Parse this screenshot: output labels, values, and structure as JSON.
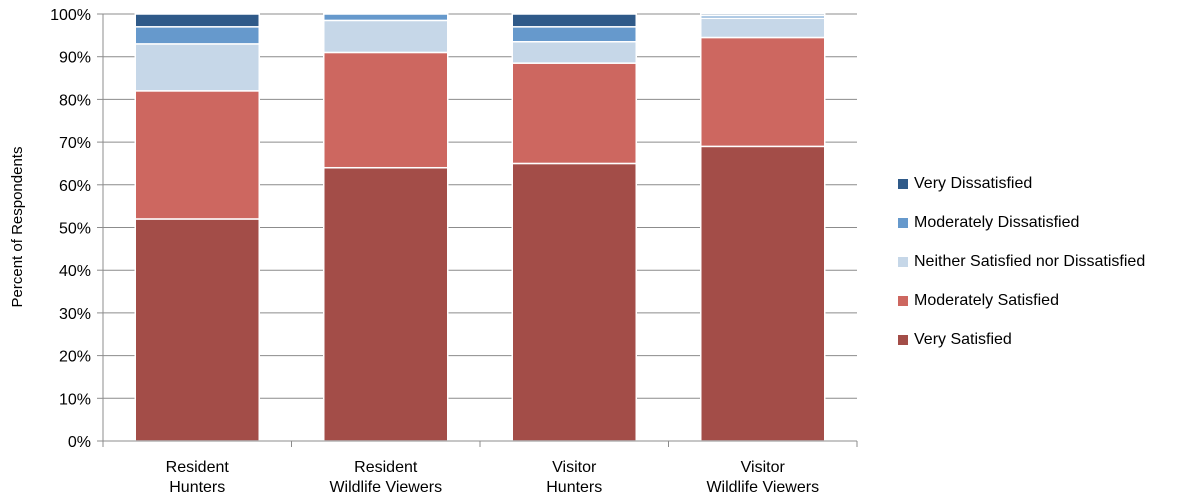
{
  "chart_data": {
    "type": "bar",
    "stacked": true,
    "categories": [
      [
        "Resident",
        "Hunters"
      ],
      [
        "Resident",
        "Wildlife Viewers"
      ],
      [
        "Visitor",
        "Hunters"
      ],
      [
        "Visitor",
        "Wildlife Viewers"
      ]
    ],
    "series": [
      {
        "name": "Very Satisfied",
        "color": "#A34D48",
        "values": [
          52,
          64,
          65,
          69
        ]
      },
      {
        "name": "Moderately Satisfied",
        "color": "#CD6760",
        "values": [
          30,
          27,
          23.5,
          25.5
        ]
      },
      {
        "name": "Neither Satisfied nor Dissatisfied",
        "color": "#C6D7E8",
        "values": [
          11,
          7.5,
          5,
          4.5
        ]
      },
      {
        "name": "Moderately Dissatisfied",
        "color": "#6699CC",
        "values": [
          4,
          1.5,
          3.5,
          0.6
        ]
      },
      {
        "name": "Very Dissatisfied",
        "color": "#2F5A89",
        "values": [
          3,
          0,
          3,
          0.4
        ]
      }
    ],
    "ylabel": "Percent of Respondents",
    "xlabel": "",
    "title": "",
    "ylim": [
      0,
      100
    ],
    "yticks": [
      "0%",
      "10%",
      "20%",
      "30%",
      "40%",
      "50%",
      "60%",
      "70%",
      "80%",
      "90%",
      "100%"
    ],
    "grid": true,
    "legend_position": "right",
    "legend_order": [
      "Very Dissatisfied",
      "Moderately Dissatisfied",
      "Neither Satisfied nor Dissatisfied",
      "Moderately Satisfied",
      "Very Satisfied"
    ]
  }
}
